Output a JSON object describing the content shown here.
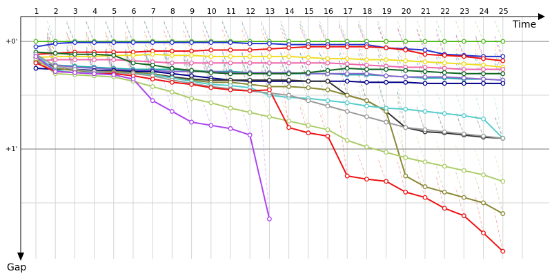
{
  "chart_data": {
    "type": "line",
    "x_axis_title": "Time",
    "y_axis_title": "Gap",
    "x_ticks": [
      "1",
      "2",
      "3",
      "4",
      "5",
      "6",
      "7",
      "8",
      "9",
      "10",
      "11",
      "12",
      "13",
      "14",
      "15",
      "16",
      "17",
      "18",
      "19",
      "20",
      "21",
      "22",
      "23",
      "24",
      "25"
    ],
    "y_ticks": [
      {
        "value": 0,
        "label": "+0'"
      },
      {
        "value": 1,
        "label": "+1'"
      }
    ],
    "xlim": [
      0,
      26.8
    ],
    "ylim": [
      -0.01,
      2.0
    ],
    "grid": true,
    "series": [
      {
        "color": "#55bb22",
        "values": [
          0,
          0,
          0,
          0,
          0,
          0,
          0,
          0,
          0,
          0,
          0,
          0,
          0,
          0,
          0,
          0,
          0,
          0,
          0,
          0,
          0,
          0,
          0,
          0,
          0
        ],
        "drop_at": null
      },
      {
        "color": "#2233cc",
        "values": [
          0.05,
          0.02,
          0.01,
          0.01,
          0.01,
          0.01,
          0.01,
          0.01,
          0.01,
          0.01,
          0.01,
          0.02,
          0.02,
          0.03,
          0.03,
          0.03,
          0.03,
          0.03,
          0.06,
          0.07,
          0.08,
          0.12,
          0.13,
          0.14,
          0.14
        ],
        "drop_at": null
      },
      {
        "color": "#ee1111",
        "values": [
          0.12,
          0.11,
          0.1,
          0.1,
          0.1,
          0.1,
          0.09,
          0.09,
          0.09,
          0.08,
          0.08,
          0.08,
          0.07,
          0.06,
          0.05,
          0.05,
          0.05,
          0.05,
          0.06,
          0.08,
          0.12,
          0.13,
          0.14,
          0.16,
          0.18
        ],
        "drop_at": null
      },
      {
        "color": "#eedd22",
        "values": [
          0.15,
          0.14,
          0.14,
          0.14,
          0.13,
          0.13,
          0.12,
          0.13,
          0.13,
          0.14,
          0.14,
          0.14,
          0.14,
          0.14,
          0.15,
          0.16,
          0.16,
          0.17,
          0.17,
          0.18,
          0.19,
          0.2,
          0.21,
          0.22,
          0.24
        ],
        "drop_at": null
      },
      {
        "color": "#ee66aa",
        "values": [
          0.18,
          0.17,
          0.17,
          0.17,
          0.17,
          0.18,
          0.19,
          0.2,
          0.2,
          0.2,
          0.2,
          0.2,
          0.2,
          0.2,
          0.2,
          0.2,
          0.21,
          0.22,
          0.23,
          0.24,
          0.24,
          0.25,
          0.26,
          0.26,
          0.26
        ],
        "drop_at": null
      },
      {
        "color": "#22aaaa",
        "values": [
          0.2,
          0.22,
          0.23,
          0.24,
          0.25,
          0.26,
          0.26,
          0.26,
          0.27,
          0.28,
          0.28,
          0.29,
          0.3,
          0.3,
          0.3,
          0.3,
          0.31,
          0.31,
          0.32,
          0.33,
          0.34,
          0.34,
          0.35,
          0.35,
          0.36
        ],
        "drop_at": null
      },
      {
        "color": "#8866cc",
        "values": [
          0.2,
          0.22,
          0.24,
          0.25,
          0.26,
          0.27,
          0.27,
          0.28,
          0.28,
          0.28,
          0.29,
          0.29,
          0.29,
          0.29,
          0.3,
          0.3,
          0.3,
          0.3,
          0.32,
          0.33,
          0.33,
          0.33,
          0.34,
          0.35,
          0.36
        ],
        "drop_at": null
      },
      {
        "color": "#116622",
        "values": [
          0.1,
          0.11,
          0.12,
          0.12,
          0.13,
          0.2,
          0.22,
          0.25,
          0.27,
          0.29,
          0.3,
          0.3,
          0.3,
          0.3,
          0.29,
          0.27,
          0.25,
          0.26,
          0.26,
          0.27,
          0.28,
          0.29,
          0.3,
          0.3,
          0.3
        ],
        "drop_at": null
      },
      {
        "color": "#000088",
        "values": [
          0.25,
          0.26,
          0.26,
          0.27,
          0.27,
          0.28,
          0.28,
          0.3,
          0.32,
          0.34,
          0.36,
          0.37,
          0.37,
          0.37,
          0.37,
          0.37,
          0.37,
          0.38,
          0.38,
          0.38,
          0.39,
          0.39,
          0.39,
          0.39,
          0.39
        ],
        "drop_at": null
      },
      {
        "color": "#333333",
        "values": [
          0.15,
          0.25,
          0.27,
          0.28,
          0.28,
          0.29,
          0.3,
          0.33,
          0.35,
          0.36,
          0.36,
          0.36,
          0.36,
          0.36,
          0.37,
          0.37,
          0.5,
          0.55,
          0.65,
          0.8,
          0.84,
          0.85,
          0.87,
          0.89,
          0.9
        ],
        "drop_at": null
      },
      {
        "color": "#888833",
        "values": [
          0.18,
          0.25,
          0.27,
          0.28,
          0.28,
          0.29,
          0.3,
          0.34,
          0.36,
          0.38,
          0.38,
          0.4,
          0.42,
          0.42,
          0.43,
          0.45,
          0.5,
          0.55,
          0.65,
          1.25,
          1.35,
          1.4,
          1.45,
          1.5,
          1.6
        ],
        "drop_at": null
      },
      {
        "color": "#55cccc",
        "values": [
          0.12,
          0.27,
          0.29,
          0.29,
          0.29,
          0.3,
          0.31,
          0.34,
          0.37,
          0.4,
          0.41,
          0.43,
          0.5,
          0.52,
          0.53,
          0.55,
          0.57,
          0.6,
          0.62,
          0.63,
          0.65,
          0.67,
          0.69,
          0.72,
          0.9
        ],
        "drop_at": null
      },
      {
        "color": "#999999",
        "values": [
          0.12,
          0.23,
          0.26,
          0.28,
          0.29,
          0.3,
          0.32,
          0.36,
          0.39,
          0.42,
          0.44,
          0.46,
          0.48,
          0.5,
          0.55,
          0.6,
          0.65,
          0.7,
          0.75,
          0.8,
          0.82,
          0.84,
          0.86,
          0.88,
          0.9
        ],
        "drop_at": null
      },
      {
        "color": "#aacc66",
        "values": [
          0.16,
          0.3,
          0.31,
          0.32,
          0.33,
          0.37,
          0.42,
          0.47,
          0.53,
          0.57,
          0.62,
          0.66,
          0.7,
          0.74,
          0.78,
          0.82,
          0.92,
          0.98,
          1.03,
          1.08,
          1.12,
          1.16,
          1.2,
          1.24,
          1.3
        ],
        "drop_at": null
      },
      {
        "color": "#ee1111",
        "values": [
          0.2,
          0.28,
          0.29,
          0.3,
          0.3,
          0.32,
          0.35,
          0.38,
          0.4,
          0.43,
          0.45,
          0.46,
          0.45,
          0.8,
          0.85,
          0.88,
          1.25,
          1.28,
          1.3,
          1.4,
          1.45,
          1.55,
          1.62,
          1.78,
          1.95
        ],
        "drop_at": null
      },
      {
        "color": "#aa44ee",
        "values": [
          0.14,
          0.28,
          0.29,
          0.3,
          0.31,
          0.35,
          0.55,
          0.65,
          0.75,
          0.78,
          0.81,
          0.87,
          1.65
        ],
        "drop_at": null
      }
    ]
  }
}
